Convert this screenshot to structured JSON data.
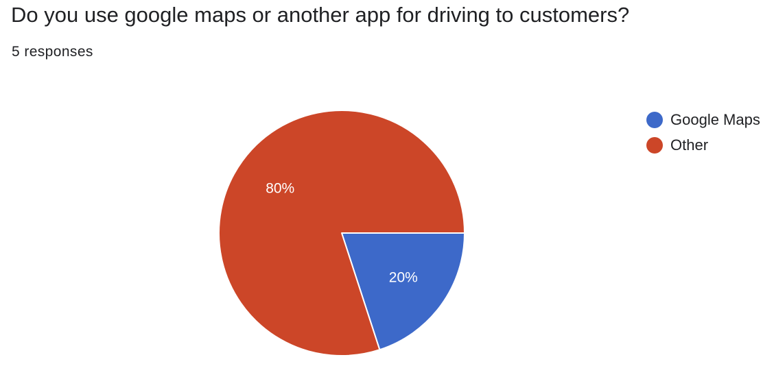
{
  "question": {
    "title": "Do you use google maps or another app for driving to customers?",
    "responses": "5 responses"
  },
  "chart_data": {
    "type": "pie",
    "categories": [
      "Google Maps",
      "Other"
    ],
    "values": [
      20,
      80
    ],
    "labels": [
      "20%",
      "80%"
    ],
    "colors": [
      "#3d69c9",
      "#cc4628"
    ],
    "legend_position": "right"
  }
}
